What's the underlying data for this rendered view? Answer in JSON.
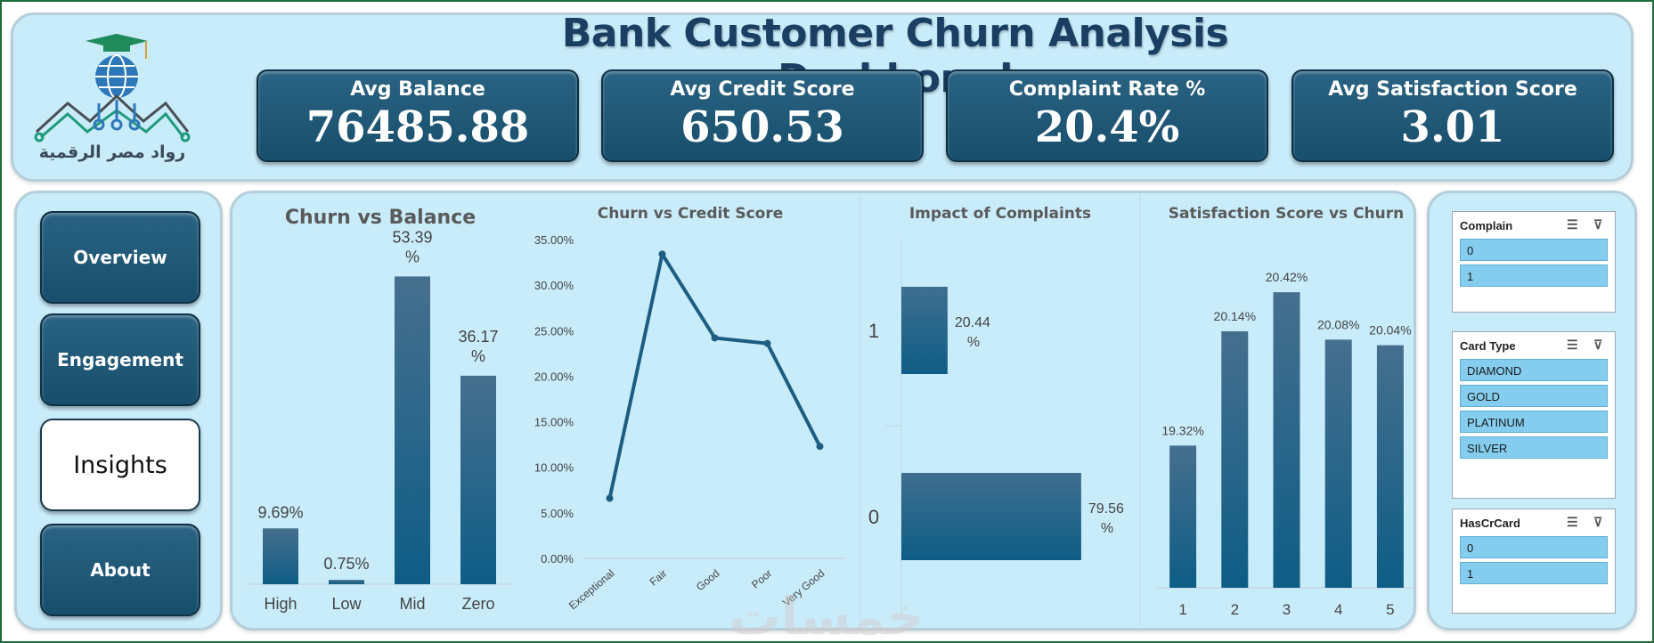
{
  "header": {
    "title": "Bank Customer Churn Analysis Dashborad",
    "logo_text": "رواد مصر الرقمية"
  },
  "kpis": [
    {
      "label": "Avg Balance",
      "value": "76485.88"
    },
    {
      "label": "Avg Credit Score",
      "value": "650.53"
    },
    {
      "label": "Complaint Rate %",
      "value": "20.4%"
    },
    {
      "label": "Avg Satisfaction Score",
      "value": "3.01"
    }
  ],
  "nav": {
    "items": [
      {
        "label": "Overview",
        "active": false
      },
      {
        "label": "Engagement",
        "active": false
      },
      {
        "label": "Insights",
        "active": true
      },
      {
        "label": "About",
        "active": false
      }
    ]
  },
  "chart_data": [
    {
      "type": "bar",
      "title": "Churn vs Balance",
      "categories": [
        "High",
        "Low",
        "Mid",
        "Zero"
      ],
      "values": [
        9.69,
        0.75,
        53.39,
        36.17
      ],
      "data_labels": [
        "9.69%",
        "0.75%",
        "53.39 %",
        "36.17 %"
      ],
      "ylim": [
        0,
        55
      ]
    },
    {
      "type": "line",
      "title": "Churn vs Credit Score",
      "categories": [
        "Exceptional",
        "Fair",
        "Good",
        "Poor",
        "Very Good"
      ],
      "values": [
        6.6,
        33.4,
        24.2,
        23.6,
        12.3
      ],
      "ylim": [
        0,
        35
      ],
      "yticks": [
        "0.00%",
        "5.00%",
        "10.00%",
        "15.00%",
        "20.00%",
        "25.00%",
        "30.00%",
        "35.00%"
      ]
    },
    {
      "type": "bar",
      "orientation": "horizontal",
      "title": "Impact of Complaints",
      "categories": [
        "1",
        "0"
      ],
      "values": [
        20.44,
        79.56
      ],
      "data_labels": [
        "20.44 %",
        "79.56 %"
      ],
      "xlim": [
        0,
        100
      ]
    },
    {
      "type": "bar",
      "title": "Satisfaction Score vs Churn",
      "categories": [
        "1",
        "2",
        "3",
        "4",
        "5"
      ],
      "values": [
        19.32,
        20.14,
        20.42,
        20.08,
        20.04
      ],
      "data_labels": [
        "19.32%",
        "20.14%",
        "20.42%",
        "20.08%",
        "20.04%"
      ],
      "ylim": [
        18.3,
        20.6
      ]
    }
  ],
  "slicers": [
    {
      "title": "Complain",
      "items": [
        "0",
        "1"
      ]
    },
    {
      "title": "Card Type",
      "items": [
        "DIAMOND",
        "GOLD",
        "PLATINUM",
        "SILVER"
      ]
    },
    {
      "title": "HasCrCard",
      "items": [
        "0",
        "1"
      ]
    }
  ],
  "icons": {
    "multi_select": "checklist-icon",
    "clear_filter": "filter-clear-icon"
  },
  "colors": {
    "bar_top": "#3f6f90",
    "bar_bottom": "#0e5d86",
    "panel": "#c9ecfb",
    "kpi": "#1d5573"
  },
  "watermark": "خمسات"
}
